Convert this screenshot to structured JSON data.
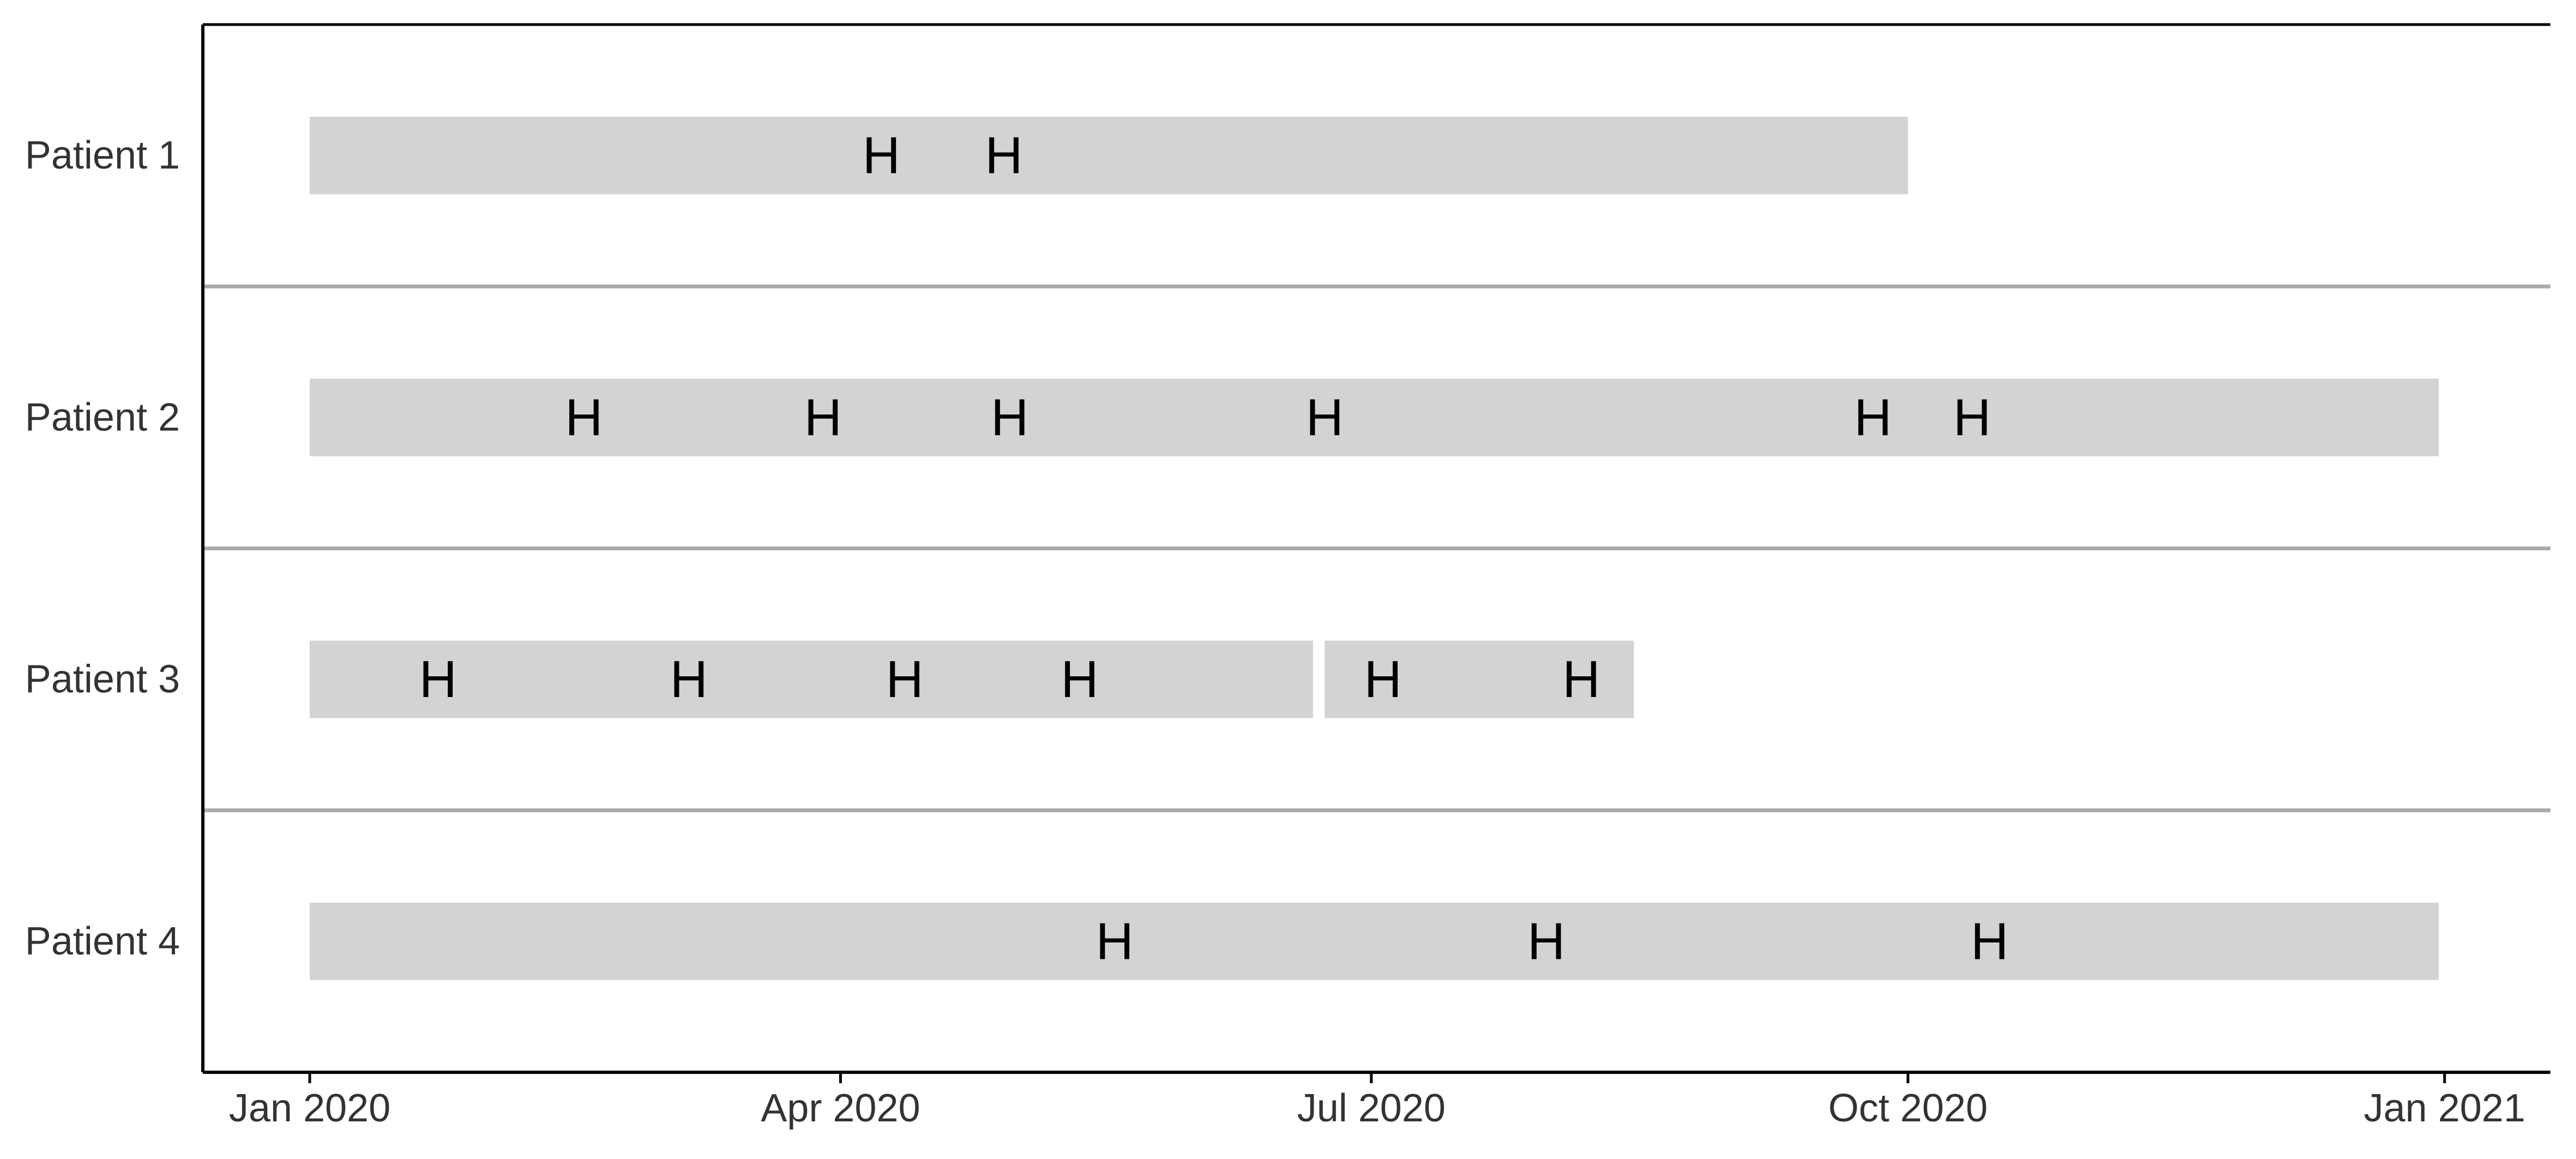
{
  "chart_data": {
    "type": "timeline",
    "title": "",
    "xlabel": "",
    "ylabel": "",
    "x_range": [
      "2020-01-01",
      "2021-01-01"
    ],
    "x_ticks": [
      {
        "date": "2020-01-01",
        "label": "Jan 2020"
      },
      {
        "date": "2020-04-01",
        "label": "Apr 2020"
      },
      {
        "date": "2020-07-01",
        "label": "Jul 2020"
      },
      {
        "date": "2020-10-01",
        "label": "Oct 2020"
      },
      {
        "date": "2021-01-01",
        "label": "Jan 2021"
      }
    ],
    "grid": false,
    "colors": {
      "bar": "#d3d3d3",
      "separator": "#aaaaaa",
      "axis": "#000000",
      "text": "#333333",
      "event_text": "#000000"
    },
    "event_symbol": "H",
    "patients": [
      {
        "label": "Patient 1",
        "periods": [
          {
            "start": "2020-01-01",
            "end": "2020-10-01"
          }
        ],
        "events": [
          "2020-04-08",
          "2020-04-29"
        ]
      },
      {
        "label": "Patient 2",
        "periods": [
          {
            "start": "2020-01-01",
            "end": "2020-12-31"
          }
        ],
        "events": [
          "2020-02-17",
          "2020-03-29",
          "2020-04-30",
          "2020-06-23",
          "2020-09-25",
          "2020-10-12"
        ]
      },
      {
        "label": "Patient 3",
        "periods": [
          {
            "start": "2020-01-01",
            "end": "2020-06-21"
          },
          {
            "start": "2020-06-23",
            "end": "2020-08-15"
          }
        ],
        "events": [
          "2020-01-23",
          "2020-03-06",
          "2020-04-12",
          "2020-05-12",
          "2020-07-03",
          "2020-08-06"
        ]
      },
      {
        "label": "Patient 4",
        "periods": [
          {
            "start": "2020-01-01",
            "end": "2020-12-31"
          }
        ],
        "events": [
          "2020-05-18",
          "2020-07-31",
          "2020-10-15"
        ]
      }
    ]
  }
}
